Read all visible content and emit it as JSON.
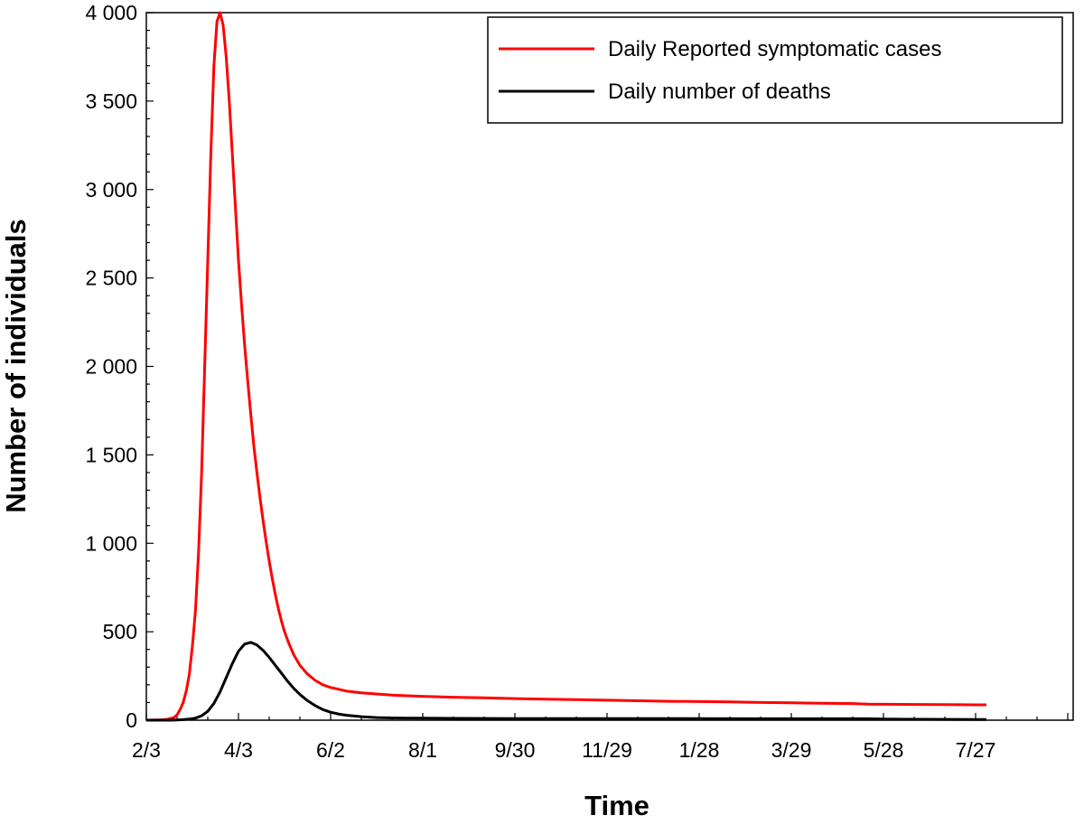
{
  "chart_data": {
    "type": "line",
    "title": "",
    "xlabel": "Time",
    "ylabel": "Number of individuals",
    "x_tick_labels": [
      "2/3",
      "4/3",
      "6/2",
      "8/1",
      "9/30",
      "11/29",
      "1/28",
      "3/29",
      "5/28",
      "7/27"
    ],
    "x_tick_days": [
      0,
      60,
      120,
      180,
      240,
      300,
      360,
      420,
      480,
      540
    ],
    "xlim_days": [
      0,
      600
    ],
    "ylim": [
      0,
      4000
    ],
    "y_tick_values": [
      0,
      500,
      1000,
      1500,
      2000,
      2500,
      3000,
      3500,
      4000
    ],
    "y_tick_labels": [
      "0",
      "500",
      "1 000",
      "1 500",
      "2 000",
      "2 500",
      "3 000",
      "3 500",
      "4 000"
    ],
    "grid": false,
    "legend_position": "top-right",
    "series": [
      {
        "name": "Daily Reported symptomatic cases",
        "color": "#ff0000",
        "x_days": [
          0,
          10,
          14,
          18,
          20,
          22,
          24,
          26,
          28,
          30,
          32,
          34,
          36,
          38,
          40,
          42,
          44,
          46,
          48,
          50,
          52,
          54,
          56,
          58,
          60,
          62,
          64,
          66,
          68,
          70,
          72,
          74,
          76,
          78,
          80,
          82,
          84,
          86,
          88,
          90,
          93,
          96,
          100,
          105,
          110,
          115,
          120,
          125,
          130,
          140,
          150,
          160,
          170,
          180,
          200,
          220,
          240,
          260,
          280,
          300,
          320,
          340,
          360,
          380,
          400,
          420,
          440,
          460,
          470,
          480,
          500,
          520,
          540,
          547
        ],
        "values": [
          0,
          2,
          5,
          15,
          30,
          60,
          100,
          165,
          260,
          420,
          620,
          950,
          1400,
          2000,
          2600,
          3200,
          3700,
          3950,
          4000,
          3930,
          3750,
          3500,
          3200,
          2900,
          2600,
          2350,
          2120,
          1920,
          1730,
          1550,
          1400,
          1260,
          1130,
          1010,
          900,
          800,
          710,
          630,
          560,
          500,
          430,
          370,
          310,
          260,
          225,
          200,
          185,
          175,
          165,
          155,
          148,
          142,
          138,
          135,
          130,
          126,
          122,
          119,
          116,
          113,
          110,
          107,
          105,
          103,
          100,
          98,
          96,
          94,
          91,
          90,
          89,
          88,
          87,
          87
        ]
      },
      {
        "name": "Daily number of deaths",
        "color": "#000000",
        "x_days": [
          0,
          16,
          20,
          24,
          28,
          32,
          36,
          40,
          44,
          48,
          52,
          56,
          60,
          64,
          68,
          72,
          76,
          80,
          84,
          88,
          92,
          96,
          100,
          105,
          110,
          115,
          120,
          125,
          130,
          140,
          150,
          160,
          170,
          180,
          200,
          240,
          300,
          400,
          470,
          480,
          500,
          540,
          547
        ],
        "values": [
          0,
          0,
          1,
          3,
          6,
          12,
          25,
          50,
          95,
          160,
          240,
          320,
          390,
          430,
          440,
          425,
          395,
          355,
          310,
          265,
          220,
          180,
          145,
          110,
          82,
          60,
          45,
          35,
          28,
          20,
          15,
          13,
          12,
          11,
          10,
          9,
          9,
          8,
          8,
          6,
          5,
          4,
          4
        ]
      }
    ]
  }
}
